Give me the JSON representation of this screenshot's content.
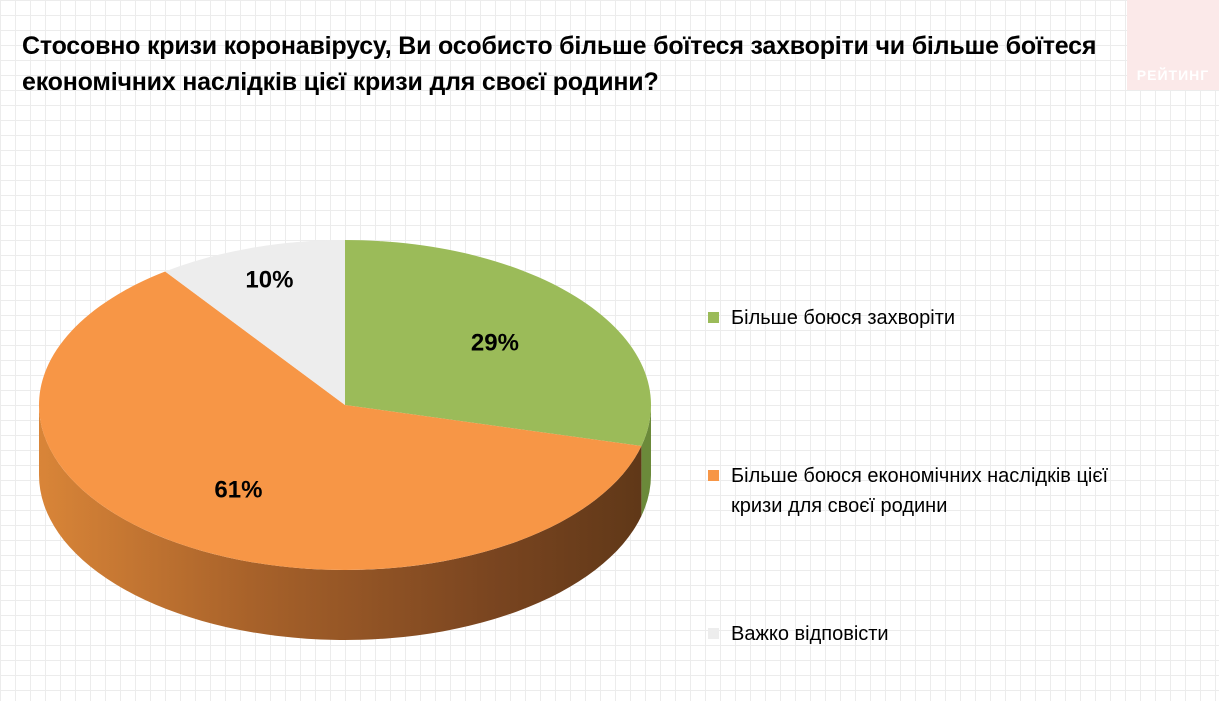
{
  "title": "Стосовно кризи коронавірусу, Ви особисто більше боїтеся захворіти чи більше боїтеся економічних наслідків цієї кризи для своєї родини?",
  "logo": {
    "text": "РЕЙТИНГ"
  },
  "chart_data": {
    "type": "pie",
    "title": "Стосовно кризи коронавірусу, Ви особисто більше боїтеся захворіти чи більше боїтеся економічних наслідків цієї кризи для своєї родини?",
    "categories": [
      "Більше боюся захворіти",
      "Більше боюся економічних наслідків цієї кризи для своєї родини",
      "Важко відповісти"
    ],
    "values": [
      29,
      61,
      10
    ],
    "labels": [
      "29%",
      "61%",
      "10%"
    ],
    "colors": [
      "#9bbb59",
      "#f79646",
      "#ededed"
    ],
    "side_colors": [
      "#6b8a3a",
      "#8a4c1a",
      "#b5b5b5"
    ],
    "legend_position": "right",
    "three_d": true
  }
}
